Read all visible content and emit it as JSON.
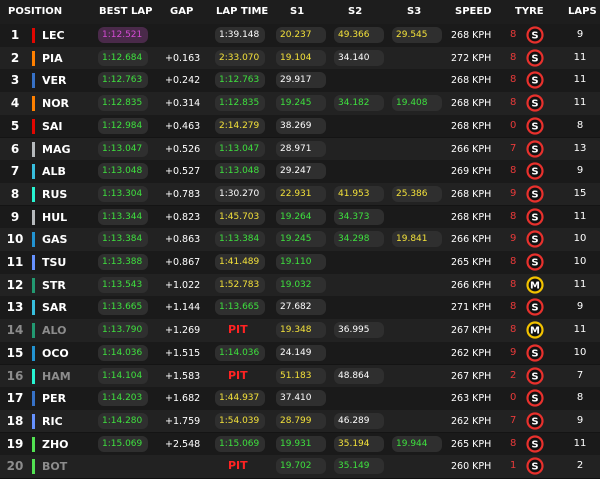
{
  "header": {
    "position": "POSITION",
    "best_lap": "BEST LAP",
    "gap": "GAP",
    "lap_time": "LAP TIME",
    "s1": "S1",
    "s2": "S2",
    "s3": "S3",
    "speed": "SPEED",
    "tyre": "TYRE",
    "laps": "LAPS"
  },
  "colors": {
    "purple": "#d44bd4",
    "green": "#3ee03e",
    "yellow": "#f3e13a",
    "white": "#ffffff",
    "pit_red": "#ff2323",
    "tyre_soft": "#e8312d",
    "tyre_medium": "#f2c200"
  },
  "rows": [
    {
      "pos": "1",
      "driver": "LEC",
      "team_color": "#e10600",
      "best_lap": "1:12.521",
      "best_color": "purple",
      "gap": "",
      "lap_time": "1:39.148",
      "lap_color": "white",
      "s1": "20.237",
      "s1_color": "yellow",
      "s2": "49.366",
      "s2_color": "yellow",
      "s3": "29.545",
      "s3_color": "yellow",
      "speed": "268 KPH",
      "tyre_age": "8",
      "tyre": "S",
      "tyre_icon": "soft-tyre-icon",
      "laps": "9",
      "dim": false
    },
    {
      "pos": "2",
      "driver": "PIA",
      "team_color": "#ff8000",
      "best_lap": "1:12.684",
      "best_color": "green",
      "gap": "+0.163",
      "lap_time": "2:33.070",
      "lap_color": "yellow",
      "s1": "19.104",
      "s1_color": "yellow",
      "s2": "34.140",
      "s2_color": "white",
      "s3": "",
      "s3_color": "white",
      "speed": "272 KPH",
      "tyre_age": "8",
      "tyre": "S",
      "tyre_icon": "soft-tyre-icon",
      "laps": "11",
      "dim": false
    },
    {
      "pos": "3",
      "driver": "VER",
      "team_color": "#3671c6",
      "best_lap": "1:12.763",
      "best_color": "green",
      "gap": "+0.242",
      "lap_time": "1:12.763",
      "lap_color": "green",
      "s1": "29.917",
      "s1_color": "white",
      "s2": "",
      "s2_color": "white",
      "s3": "",
      "s3_color": "white",
      "speed": "268 KPH",
      "tyre_age": "8",
      "tyre": "S",
      "tyre_icon": "soft-tyre-icon",
      "laps": "11",
      "dim": false
    },
    {
      "pos": "4",
      "driver": "NOR",
      "team_color": "#ff8000",
      "best_lap": "1:12.835",
      "best_color": "green",
      "gap": "+0.314",
      "lap_time": "1:12.835",
      "lap_color": "green",
      "s1": "19.245",
      "s1_color": "green",
      "s2": "34.182",
      "s2_color": "green",
      "s3": "19.408",
      "s3_color": "green",
      "speed": "268 KPH",
      "tyre_age": "8",
      "tyre": "S",
      "tyre_icon": "soft-tyre-icon",
      "laps": "11",
      "dim": false
    },
    {
      "pos": "5",
      "driver": "SAI",
      "team_color": "#e10600",
      "best_lap": "1:12.984",
      "best_color": "green",
      "gap": "+0.463",
      "lap_time": "2:14.279",
      "lap_color": "yellow",
      "s1": "38.269",
      "s1_color": "white",
      "s2": "",
      "s2_color": "white",
      "s3": "",
      "s3_color": "white",
      "speed": "268 KPH",
      "tyre_age": "0",
      "tyre": "S",
      "tyre_icon": "soft-tyre-icon",
      "laps": "8",
      "dim": false
    },
    {
      "pos": "6",
      "driver": "MAG",
      "team_color": "#b6babd",
      "best_lap": "1:13.047",
      "best_color": "green",
      "gap": "+0.526",
      "lap_time": "1:13.047",
      "lap_color": "green",
      "s1": "28.971",
      "s1_color": "white",
      "s2": "",
      "s2_color": "white",
      "s3": "",
      "s3_color": "white",
      "speed": "266 KPH",
      "tyre_age": "7",
      "tyre": "S",
      "tyre_icon": "soft-tyre-icon",
      "laps": "13",
      "dim": false
    },
    {
      "pos": "7",
      "driver": "ALB",
      "team_color": "#37bedd",
      "best_lap": "1:13.048",
      "best_color": "green",
      "gap": "+0.527",
      "lap_time": "1:13.048",
      "lap_color": "green",
      "s1": "29.247",
      "s1_color": "white",
      "s2": "",
      "s2_color": "white",
      "s3": "",
      "s3_color": "white",
      "speed": "269 KPH",
      "tyre_age": "8",
      "tyre": "S",
      "tyre_icon": "soft-tyre-icon",
      "laps": "9",
      "dim": false
    },
    {
      "pos": "8",
      "driver": "RUS",
      "team_color": "#27f4d2",
      "best_lap": "1:13.304",
      "best_color": "green",
      "gap": "+0.783",
      "lap_time": "1:30.270",
      "lap_color": "white",
      "s1": "22.931",
      "s1_color": "yellow",
      "s2": "41.953",
      "s2_color": "yellow",
      "s3": "25.386",
      "s3_color": "yellow",
      "speed": "268 KPH",
      "tyre_age": "9",
      "tyre": "S",
      "tyre_icon": "soft-tyre-icon",
      "laps": "15",
      "dim": false
    },
    {
      "pos": "9",
      "driver": "HUL",
      "team_color": "#b6babd",
      "best_lap": "1:13.344",
      "best_color": "green",
      "gap": "+0.823",
      "lap_time": "1:45.703",
      "lap_color": "yellow",
      "s1": "19.264",
      "s1_color": "green",
      "s2": "34.373",
      "s2_color": "green",
      "s3": "",
      "s3_color": "white",
      "speed": "268 KPH",
      "tyre_age": "8",
      "tyre": "S",
      "tyre_icon": "soft-tyre-icon",
      "laps": "11",
      "dim": false
    },
    {
      "pos": "10",
      "driver": "GAS",
      "team_color": "#2293d1",
      "best_lap": "1:13.384",
      "best_color": "green",
      "gap": "+0.863",
      "lap_time": "1:13.384",
      "lap_color": "green",
      "s1": "19.245",
      "s1_color": "green",
      "s2": "34.298",
      "s2_color": "green",
      "s3": "19.841",
      "s3_color": "yellow",
      "speed": "266 KPH",
      "tyre_age": "9",
      "tyre": "S",
      "tyre_icon": "soft-tyre-icon",
      "laps": "10",
      "dim": false
    },
    {
      "pos": "11",
      "driver": "TSU",
      "team_color": "#6692ff",
      "best_lap": "1:13.388",
      "best_color": "green",
      "gap": "+0.867",
      "lap_time": "1:41.489",
      "lap_color": "yellow",
      "s1": "19.110",
      "s1_color": "green",
      "s2": "",
      "s2_color": "white",
      "s3": "",
      "s3_color": "white",
      "speed": "265 KPH",
      "tyre_age": "8",
      "tyre": "S",
      "tyre_icon": "soft-tyre-icon",
      "laps": "10",
      "dim": false
    },
    {
      "pos": "12",
      "driver": "STR",
      "team_color": "#229971",
      "best_lap": "1:13.543",
      "best_color": "green",
      "gap": "+1.022",
      "lap_time": "1:52.783",
      "lap_color": "yellow",
      "s1": "19.032",
      "s1_color": "green",
      "s2": "",
      "s2_color": "white",
      "s3": "",
      "s3_color": "white",
      "speed": "266 KPH",
      "tyre_age": "8",
      "tyre": "M",
      "tyre_icon": "medium-tyre-icon",
      "laps": "11",
      "dim": false
    },
    {
      "pos": "13",
      "driver": "SAR",
      "team_color": "#37bedd",
      "best_lap": "1:13.665",
      "best_color": "green",
      "gap": "+1.144",
      "lap_time": "1:13.665",
      "lap_color": "green",
      "s1": "27.682",
      "s1_color": "white",
      "s2": "",
      "s2_color": "white",
      "s3": "",
      "s3_color": "white",
      "speed": "271 KPH",
      "tyre_age": "8",
      "tyre": "S",
      "tyre_icon": "soft-tyre-icon",
      "laps": "9",
      "dim": false
    },
    {
      "pos": "14",
      "driver": "ALO",
      "team_color": "#229971",
      "best_lap": "1:13.790",
      "best_color": "green",
      "gap": "+1.269",
      "lap_time": "PIT",
      "lap_color": "pit",
      "s1": "19.348",
      "s1_color": "yellow",
      "s2": "36.995",
      "s2_color": "white",
      "s3": "",
      "s3_color": "white",
      "speed": "267 KPH",
      "tyre_age": "8",
      "tyre": "M",
      "tyre_icon": "medium-tyre-icon",
      "laps": "11",
      "dim": true
    },
    {
      "pos": "15",
      "driver": "OCO",
      "team_color": "#2293d1",
      "best_lap": "1:14.036",
      "best_color": "green",
      "gap": "+1.515",
      "lap_time": "1:14.036",
      "lap_color": "green",
      "s1": "24.149",
      "s1_color": "white",
      "s2": "",
      "s2_color": "white",
      "s3": "",
      "s3_color": "white",
      "speed": "262 KPH",
      "tyre_age": "9",
      "tyre": "S",
      "tyre_icon": "soft-tyre-icon",
      "laps": "10",
      "dim": false
    },
    {
      "pos": "16",
      "driver": "HAM",
      "team_color": "#27f4d2",
      "best_lap": "1:14.104",
      "best_color": "green",
      "gap": "+1.583",
      "lap_time": "PIT",
      "lap_color": "pit",
      "s1": "51.183",
      "s1_color": "yellow",
      "s2": "48.864",
      "s2_color": "white",
      "s3": "",
      "s3_color": "white",
      "speed": "267 KPH",
      "tyre_age": "2",
      "tyre": "S",
      "tyre_icon": "soft-tyre-icon",
      "laps": "7",
      "dim": true
    },
    {
      "pos": "17",
      "driver": "PER",
      "team_color": "#3671c6",
      "best_lap": "1:14.203",
      "best_color": "green",
      "gap": "+1.682",
      "lap_time": "1:44.937",
      "lap_color": "yellow",
      "s1": "37.410",
      "s1_color": "white",
      "s2": "",
      "s2_color": "white",
      "s3": "",
      "s3_color": "white",
      "speed": "263 KPH",
      "tyre_age": "0",
      "tyre": "S",
      "tyre_icon": "soft-tyre-icon",
      "laps": "8",
      "dim": false
    },
    {
      "pos": "18",
      "driver": "RIC",
      "team_color": "#6692ff",
      "best_lap": "1:14.280",
      "best_color": "green",
      "gap": "+1.759",
      "lap_time": "1:54.039",
      "lap_color": "yellow",
      "s1": "28.799",
      "s1_color": "yellow",
      "s2": "46.289",
      "s2_color": "white",
      "s3": "",
      "s3_color": "white",
      "speed": "262 KPH",
      "tyre_age": "7",
      "tyre": "S",
      "tyre_icon": "soft-tyre-icon",
      "laps": "9",
      "dim": false
    },
    {
      "pos": "19",
      "driver": "ZHO",
      "team_color": "#52e252",
      "best_lap": "1:15.069",
      "best_color": "green",
      "gap": "+2.548",
      "lap_time": "1:15.069",
      "lap_color": "green",
      "s1": "19.931",
      "s1_color": "green",
      "s2": "35.194",
      "s2_color": "yellow",
      "s3": "19.944",
      "s3_color": "green",
      "speed": "265 KPH",
      "tyre_age": "8",
      "tyre": "S",
      "tyre_icon": "soft-tyre-icon",
      "laps": "11",
      "dim": false
    },
    {
      "pos": "20",
      "driver": "BOT",
      "team_color": "#52e252",
      "best_lap": "",
      "best_color": "green",
      "gap": "",
      "lap_time": "PIT",
      "lap_color": "pit",
      "s1": "19.702",
      "s1_color": "green",
      "s2": "35.149",
      "s2_color": "green",
      "s3": "",
      "s3_color": "white",
      "speed": "260 KPH",
      "tyre_age": "1",
      "tyre": "S",
      "tyre_icon": "soft-tyre-icon",
      "laps": "2",
      "dim": true
    }
  ]
}
